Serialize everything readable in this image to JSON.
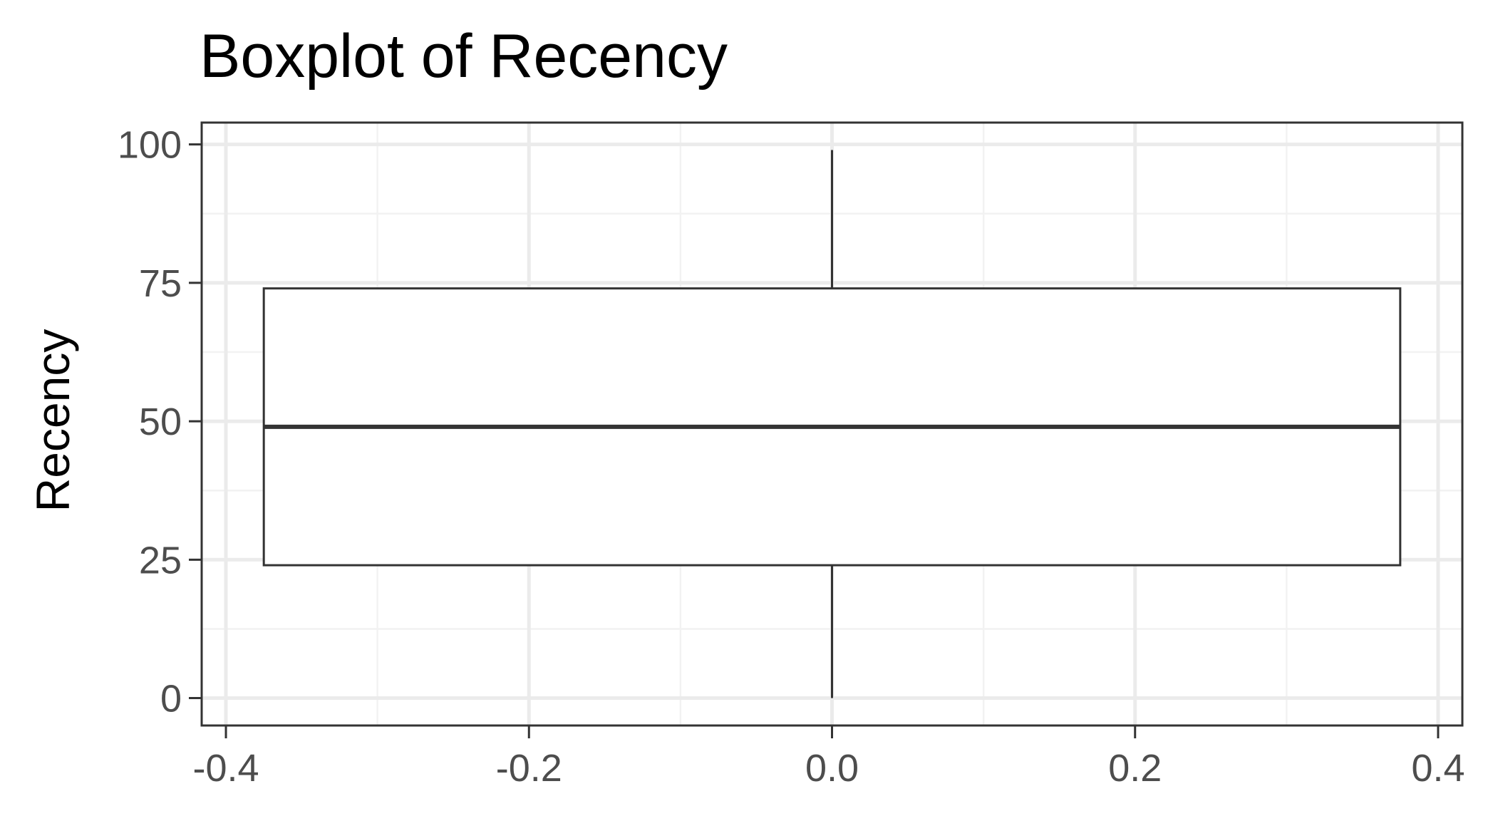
{
  "chart_data": {
    "type": "boxplot",
    "title": "Boxplot of Recency",
    "xlabel": "",
    "ylabel": "Recency",
    "xlim": [
      -0.416,
      0.416
    ],
    "ylim": [
      -4.95,
      103.95
    ],
    "x_ticks": [
      -0.4,
      -0.2,
      0.0,
      0.2,
      0.4
    ],
    "x_tick_labels": [
      "-0.4",
      "-0.2",
      "0.0",
      "0.2",
      "0.4"
    ],
    "y_ticks": [
      0,
      25,
      50,
      75,
      100
    ],
    "y_tick_labels": [
      "0",
      "25",
      "50",
      "75",
      "100"
    ],
    "grid": true,
    "box": {
      "x_center": 0.0,
      "width": 0.75,
      "min": 0,
      "q1": 24,
      "median": 49,
      "q3": 74,
      "max": 99
    },
    "colors": {
      "box_fill": "#ffffff",
      "box_stroke": "#333333",
      "panel_border": "#333333",
      "grid_major": "#ebebeb",
      "grid_minor": "#f2f2f2",
      "tick_label": "#4d4d4d"
    }
  }
}
